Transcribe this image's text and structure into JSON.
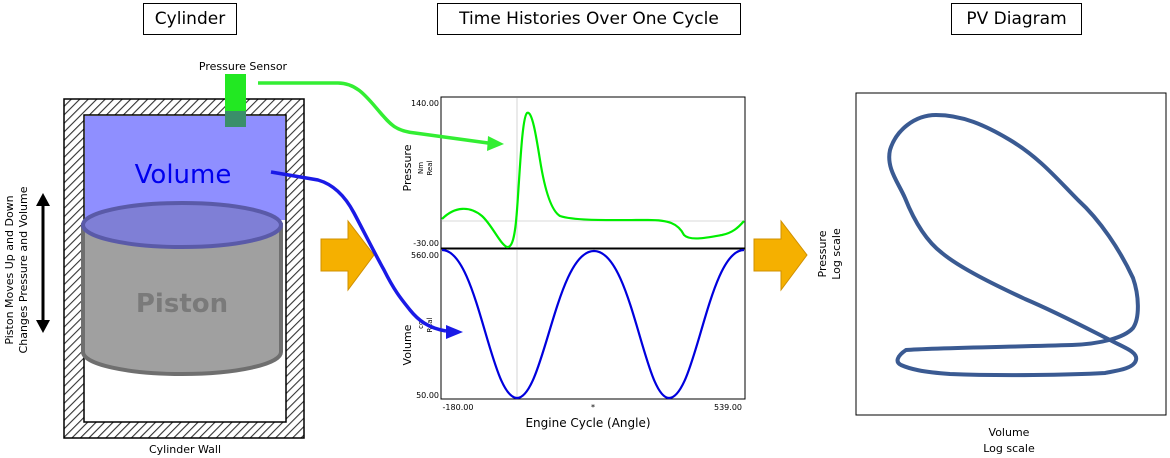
{
  "titles": {
    "cylinder": "Cylinder",
    "time_histories": "Time Histories Over One Cycle",
    "pv_diagram": "PV Diagram"
  },
  "cylinder": {
    "pressure_sensor": "Pressure Sensor",
    "volume": "Volume",
    "piston": "Piston",
    "wall": "Cylinder Wall",
    "motion_line1": "Piston Moves Up and Down",
    "motion_line2": "Changes Pressure and Volume"
  },
  "time_histories": {
    "pressure_label": "Pressure",
    "pressure_unit1": "Nm",
    "pressure_unit2": "Real",
    "pressure_max": "140.00",
    "pressure_min": "-30.00",
    "volume_label": "Volume",
    "volume_unit1": "cc",
    "volume_unit2": "Real",
    "volume_max": "560.00",
    "volume_min": "50.00",
    "x_start": "-180.00",
    "x_end": "539.00",
    "x_mid_marker": "*",
    "x_label": "Engine Cycle (Angle)"
  },
  "pv": {
    "ylabel": "Pressure",
    "ylabel_scale": "Log scale",
    "xlabel": "Volume",
    "xlabel_scale": "Log scale"
  },
  "colors": {
    "pressure": "#00ee00",
    "volume": "#0000dd",
    "volume_fill": "#8f8fff",
    "piston": "#a0a0a0",
    "arrow": "#f5b000",
    "pv_loop": "#3a5a92"
  }
}
